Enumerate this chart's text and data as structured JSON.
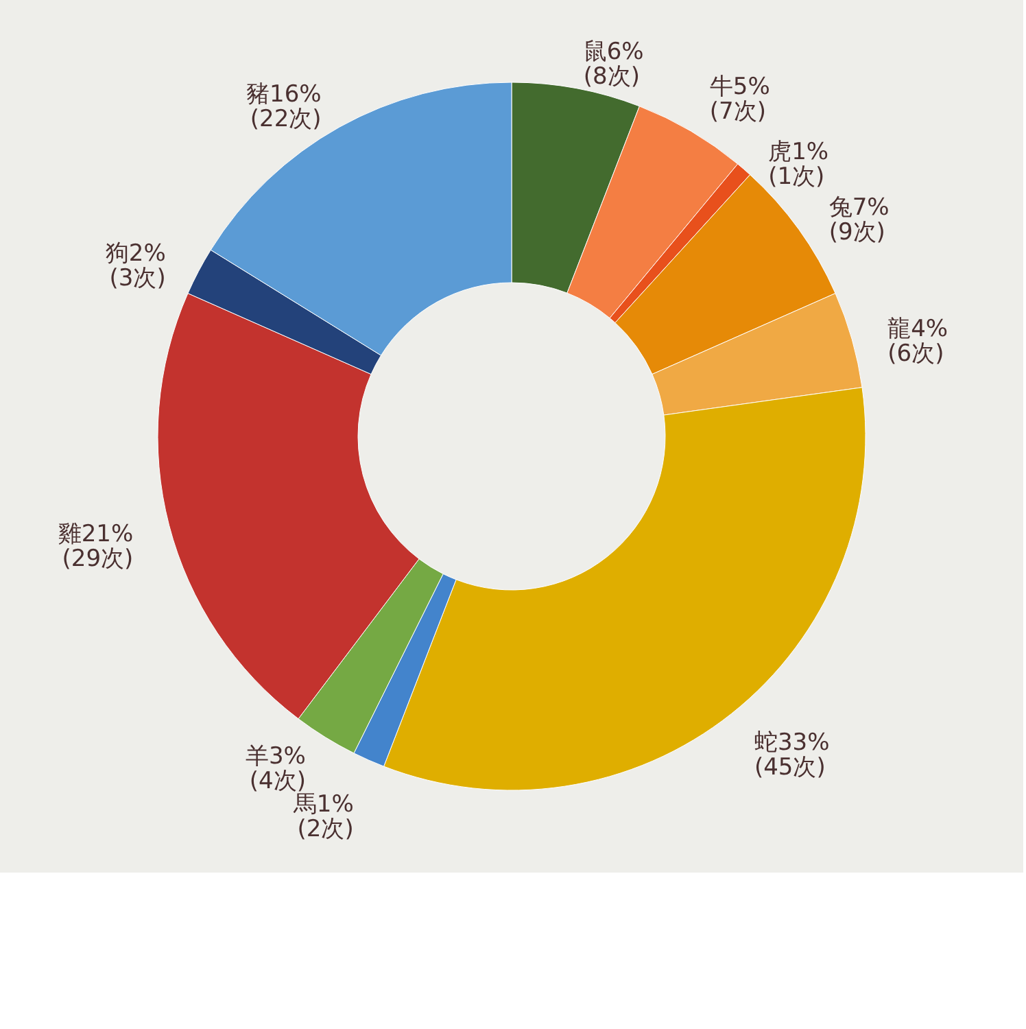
{
  "chart_data": {
    "type": "donut",
    "categories": [
      "鼠",
      "牛",
      "虎",
      "兔",
      "龍",
      "蛇",
      "馬",
      "羊",
      "雞",
      "狗",
      "豬"
    ],
    "values": [
      8,
      7,
      1,
      9,
      6,
      45,
      2,
      4,
      29,
      3,
      22
    ],
    "value_labels": [
      "6%\n(8次)",
      "5%\n(7次)",
      "1%\n(1次)",
      "7%\n(9次)",
      "4%\n(6次)",
      "33%\n(45次)",
      "1%\n(2次)",
      "3%\n(4次)",
      "21%\n(29次)",
      "2%\n(3次)",
      "16%\n(22次)"
    ],
    "colors": [
      "#436b2e",
      "#f47e43",
      "#e8501c",
      "#e68a07",
      "#f0a944",
      "#dfae00",
      "#4384cc",
      "#75a944",
      "#c3332e",
      "#23427a",
      "#5b9bd5"
    ]
  }
}
